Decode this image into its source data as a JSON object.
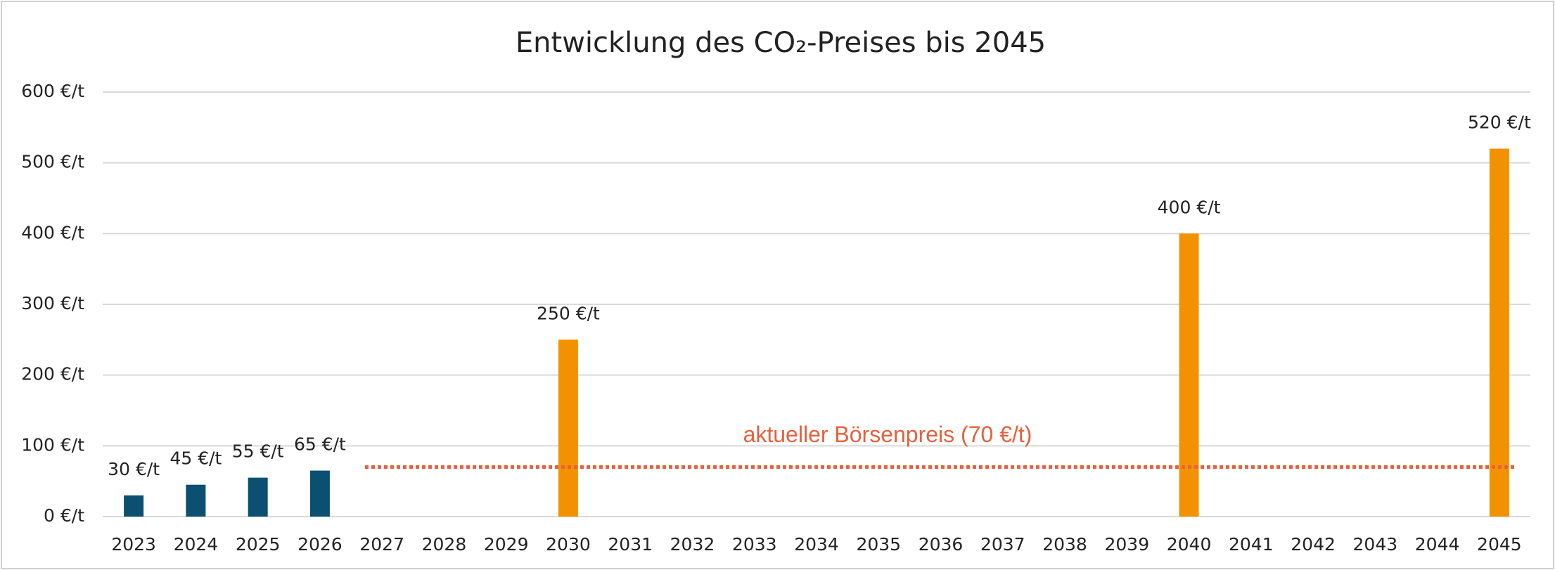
{
  "chart_data": {
    "type": "bar",
    "title": "Entwicklung des CO₂-Preises bis 2045",
    "categories": [
      "2023",
      "2024",
      "2025",
      "2026",
      "2027",
      "2028",
      "2029",
      "2030",
      "2031",
      "2032",
      "2033",
      "2034",
      "2035",
      "2036",
      "2037",
      "2038",
      "2039",
      "2040",
      "2041",
      "2042",
      "2043",
      "2044",
      "2045"
    ],
    "values": [
      30,
      45,
      55,
      65,
      null,
      null,
      null,
      250,
      null,
      null,
      null,
      null,
      null,
      null,
      null,
      null,
      null,
      400,
      null,
      null,
      null,
      null,
      520
    ],
    "value_labels": [
      "30 €/t",
      "45 €/t",
      "55 €/t",
      "65 €/t",
      null,
      null,
      null,
      "250 €/t",
      null,
      null,
      null,
      null,
      null,
      null,
      null,
      null,
      null,
      "400 €/t",
      null,
      null,
      null,
      null,
      "520 €/t"
    ],
    "bar_colors": [
      "#0b4f71",
      "#0b4f71",
      "#0b4f71",
      "#0b4f71",
      null,
      null,
      null,
      "#f39200",
      null,
      null,
      null,
      null,
      null,
      null,
      null,
      null,
      null,
      "#f39200",
      null,
      null,
      null,
      null,
      "#f39200"
    ],
    "ylim": [
      0,
      600
    ],
    "yticks": [
      {
        "value": 0,
        "label": "0 €/t"
      },
      {
        "value": 100,
        "label": "100 €/t"
      },
      {
        "value": 200,
        "label": "200 €/t"
      },
      {
        "value": 300,
        "label": "300 €/t"
      },
      {
        "value": 400,
        "label": "400 €/t"
      },
      {
        "value": 500,
        "label": "500 €/t"
      },
      {
        "value": 600,
        "label": "600 €/t"
      }
    ],
    "grid": true,
    "reference_line": {
      "value": 70,
      "label": "aktueller Börsenpreis (70 €/t)",
      "color": "#e8603c"
    }
  }
}
